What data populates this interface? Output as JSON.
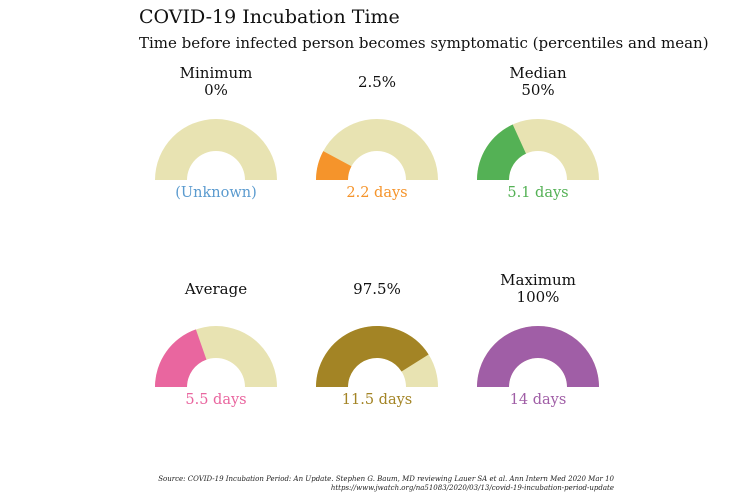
{
  "title": "COVID-19 Incubation Time",
  "subtitle": "Time before infected person becomes symptomatic (percentiles and mean)",
  "source_line1": "Source: COVID-19 Incubation Period: An Update. Stephen G. Baum, MD reviewing Lauer SA et al. Ann Intern Med 2020 Mar 10",
  "source_line2": "https://www.jwatch.org/na51083/2020/03/13/covid-19-incubation-period-update",
  "colors": {
    "track": "#e8e3b2"
  },
  "chart_data": {
    "type": "gauge",
    "scale_max_days": 14,
    "gauges": [
      {
        "label_lines": [
          "Minimum",
          "0%"
        ],
        "value_text": "(Unknown)",
        "fraction": 0,
        "color": "#5b9bcf"
      },
      {
        "label_lines": [
          "2.5%"
        ],
        "value_text": "2.2 days",
        "days": 2.2,
        "fraction": 0.157,
        "color": "#f5942b"
      },
      {
        "label_lines": [
          "Median",
          "50%"
        ],
        "value_text": "5.1 days",
        "days": 5.1,
        "fraction": 0.364,
        "color": "#54b155"
      },
      {
        "label_lines": [
          "Average"
        ],
        "value_text": "5.5 days",
        "days": 5.5,
        "fraction": 0.393,
        "color": "#e9669f"
      },
      {
        "label_lines": [
          "97.5%"
        ],
        "value_text": "11.5 days",
        "days": 11.5,
        "fraction": 0.821,
        "color": "#a38425"
      },
      {
        "label_lines": [
          "Maximum",
          "100%"
        ],
        "value_text": "14 days",
        "days": 14,
        "fraction": 1.0,
        "color": "#a05ea6"
      }
    ]
  }
}
